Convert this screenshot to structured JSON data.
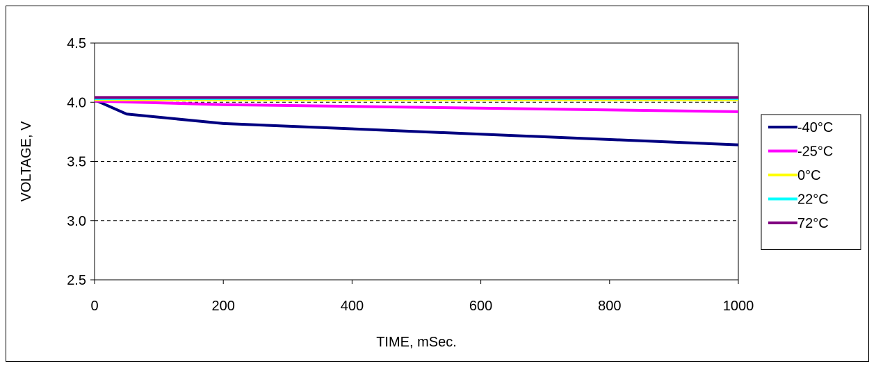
{
  "chart_data": {
    "type": "line",
    "xlabel": "TIME, mSec.",
    "ylabel": "VOLTAGE, V",
    "xlim": [
      0,
      1000
    ],
    "ylim": [
      2.5,
      4.5
    ],
    "xticks": [
      "0",
      "200",
      "400",
      "600",
      "800",
      "1000"
    ],
    "yticks": [
      "2.5",
      "3.0",
      "3.5",
      "4.0",
      "4.5"
    ],
    "grid": "horizontal dashed",
    "legend_position": "right",
    "series": [
      {
        "name": "-40°C",
        "color": "#000080",
        "x": [
          0,
          50,
          200,
          1000
        ],
        "y": [
          4.02,
          3.9,
          3.82,
          3.64
        ]
      },
      {
        "name": "-25°C",
        "color": "#FF00FF",
        "x": [
          0,
          200,
          1000
        ],
        "y": [
          4.01,
          3.98,
          3.92
        ]
      },
      {
        "name": "0°C",
        "color": "#FFFF00",
        "x": [
          0,
          1000
        ],
        "y": [
          4.02,
          4.02
        ]
      },
      {
        "name": "22°C",
        "color": "#00FFFF",
        "x": [
          0,
          1000
        ],
        "y": [
          4.03,
          4.03
        ]
      },
      {
        "name": "72°C",
        "color": "#800080",
        "x": [
          0,
          1000
        ],
        "y": [
          4.04,
          4.04
        ]
      }
    ]
  }
}
